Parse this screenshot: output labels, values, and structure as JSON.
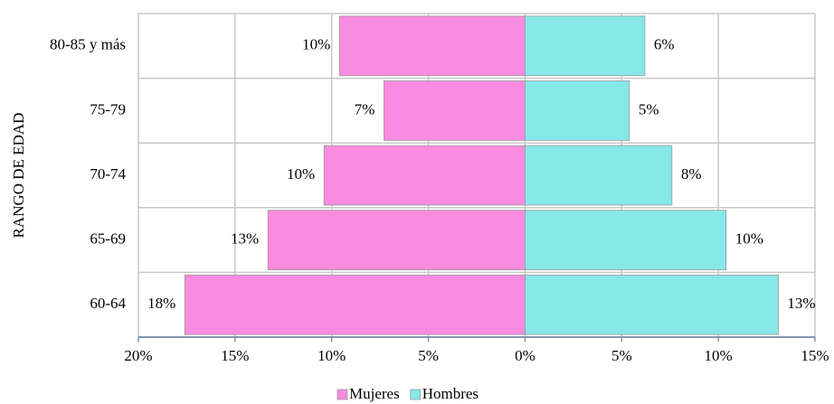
{
  "chart_data": {
    "type": "pyramid",
    "y_label": "RANGO DE EDAD",
    "categories": [
      "80-85 y más",
      "75-79",
      "70-74",
      "65-69",
      "60-64"
    ],
    "series": [
      {
        "name": "Mujeres",
        "color": "#f98be0",
        "values": [
          9.6,
          7.3,
          10.4,
          13.3,
          17.6
        ],
        "value_labels": [
          "10%",
          "7%",
          "10%",
          "13%",
          "18%"
        ]
      },
      {
        "name": "Hombres",
        "color": "#87e8e8",
        "values": [
          6.2,
          5.4,
          7.6,
          10.4,
          13.1
        ],
        "value_labels": [
          "6%",
          "5%",
          "8%",
          "10%",
          "13%"
        ]
      }
    ],
    "xlim": [
      -20,
      15
    ],
    "xticks": [
      {
        "value": -20,
        "label": "20%"
      },
      {
        "value": -15,
        "label": "15%"
      },
      {
        "value": -10,
        "label": "10%"
      },
      {
        "value": -5,
        "label": "5%"
      },
      {
        "value": 0,
        "label": "0%"
      },
      {
        "value": 5,
        "label": "5%"
      },
      {
        "value": 10,
        "label": "10%"
      },
      {
        "value": 15,
        "label": "15%"
      }
    ],
    "grid": true,
    "legend": "bottom"
  }
}
